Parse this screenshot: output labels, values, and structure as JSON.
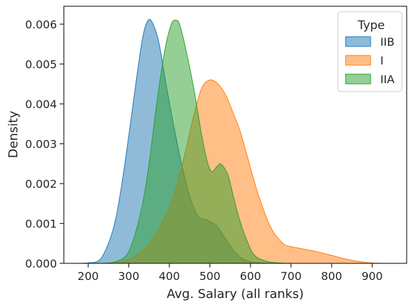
{
  "chart_data": {
    "type": "area",
    "title": "",
    "xlabel": "Avg. Salary (all ranks)",
    "ylabel": "Density",
    "xlim": [
      140,
      985
    ],
    "ylim": [
      0,
      0.00645
    ],
    "x_ticks": [
      200,
      300,
      400,
      500,
      600,
      700,
      800,
      900
    ],
    "y_ticks": [
      0.0,
      0.001,
      0.002,
      0.003,
      0.004,
      0.005,
      0.006
    ],
    "y_tick_labels": [
      "0.000",
      "0.001",
      "0.002",
      "0.003",
      "0.004",
      "0.005",
      "0.006"
    ],
    "grid": false,
    "legend": {
      "title": "Type",
      "position": "top-right"
    },
    "series": [
      {
        "name": "IIB",
        "color": "#1f77b4",
        "x": [
          170,
          200,
          230,
          260,
          280,
          300,
          320,
          335,
          348,
          360,
          375,
          390,
          410,
          430,
          450,
          470,
          490,
          500,
          510,
          520,
          540,
          560,
          580,
          600,
          630,
          660
        ],
        "y": [
          0.0,
          1e-05,
          0.0001,
          0.0008,
          0.0018,
          0.0032,
          0.0047,
          0.0057,
          0.0061,
          0.006,
          0.0055,
          0.0046,
          0.0035,
          0.0025,
          0.0017,
          0.0012,
          0.0011,
          0.00105,
          0.001,
          0.0009,
          0.0006,
          0.0003,
          0.00012,
          4e-05,
          1e-05,
          0.0
        ]
      },
      {
        "name": "I",
        "color": "#ff7f0e",
        "x": [
          210,
          250,
          300,
          350,
          400,
          430,
          460,
          480,
          500,
          520,
          540,
          560,
          575,
          600,
          620,
          650,
          680,
          700,
          730,
          760,
          800,
          830,
          860,
          900,
          950
        ],
        "y": [
          0.0,
          1e-05,
          0.0001,
          0.0005,
          0.0014,
          0.0024,
          0.0037,
          0.0044,
          0.0046,
          0.0045,
          0.0042,
          0.0037,
          0.0033,
          0.0024,
          0.0017,
          0.0009,
          0.0005,
          0.00042,
          0.00036,
          0.0003,
          0.0002,
          0.00012,
          6e-05,
          1e-05,
          0.0
        ]
      },
      {
        "name": "IIA",
        "color": "#2ca02c",
        "x": [
          240,
          270,
          300,
          330,
          350,
          370,
          390,
          405,
          415,
          425,
          440,
          460,
          480,
          495,
          505,
          515,
          525,
          535,
          545,
          555,
          570,
          590,
          610,
          640,
          670,
          700
        ],
        "y": [
          0.0,
          5e-05,
          0.0003,
          0.0013,
          0.0025,
          0.0041,
          0.0054,
          0.006,
          0.0061,
          0.006,
          0.0054,
          0.0044,
          0.0032,
          0.0025,
          0.0023,
          0.0024,
          0.0025,
          0.0024,
          0.0022,
          0.0018,
          0.0012,
          0.0006,
          0.0002,
          5e-05,
          1e-05,
          0.0
        ]
      }
    ]
  }
}
